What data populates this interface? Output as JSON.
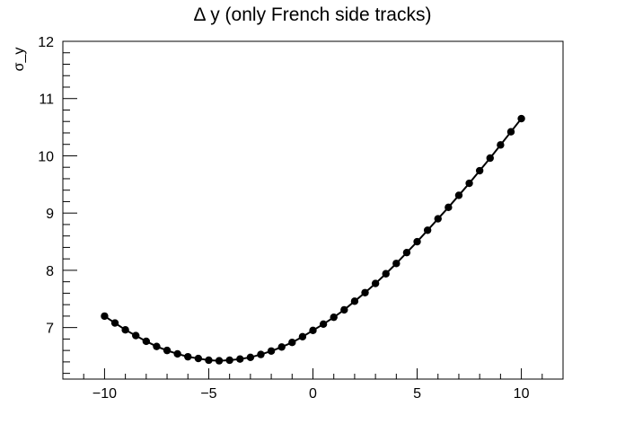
{
  "chart_data": {
    "type": "line",
    "title": "Δ y (only French side tracks)",
    "xlabel": "",
    "ylabel": "σ_y",
    "xlim": [
      -12,
      12
    ],
    "ylim": [
      6.1,
      12
    ],
    "x_ticks": [
      -10,
      -5,
      0,
      5,
      10
    ],
    "x_tick_labels": [
      "−10",
      "−5",
      "0",
      "5",
      "10"
    ],
    "y_ticks": [
      7,
      8,
      9,
      10,
      11,
      12
    ],
    "y_tick_labels": [
      "7",
      "8",
      "9",
      "10",
      "11",
      "12"
    ],
    "grid": false,
    "legend": "none",
    "colors": {
      "line": "#000000",
      "marker": "#000000",
      "frame": "#000000"
    },
    "series": [
      {
        "x": [
          -10,
          -9.5,
          -9,
          -8.5,
          -8,
          -7.5,
          -7,
          -6.5,
          -6,
          -5.5,
          -5,
          -4.5,
          -4,
          -3.5,
          -3,
          -2.5,
          -2,
          -1.5,
          -1,
          -0.5,
          0,
          0.5,
          1,
          1.5,
          2,
          2.5,
          3,
          3.5,
          4,
          4.5,
          5,
          5.5,
          6,
          6.5,
          7,
          7.5,
          8,
          8.5,
          9,
          9.5,
          10
        ],
        "values": [
          7.2,
          7.08,
          6.96,
          6.86,
          6.76,
          6.67,
          6.6,
          6.54,
          6.49,
          6.46,
          6.43,
          6.42,
          6.43,
          6.45,
          6.48,
          6.53,
          6.59,
          6.66,
          6.74,
          6.84,
          6.95,
          7.06,
          7.18,
          7.31,
          7.46,
          7.61,
          7.77,
          7.94,
          8.12,
          8.31,
          8.5,
          8.7,
          8.9,
          9.1,
          9.31,
          9.52,
          9.74,
          9.96,
          10.19,
          10.42,
          10.65
        ]
      }
    ]
  }
}
